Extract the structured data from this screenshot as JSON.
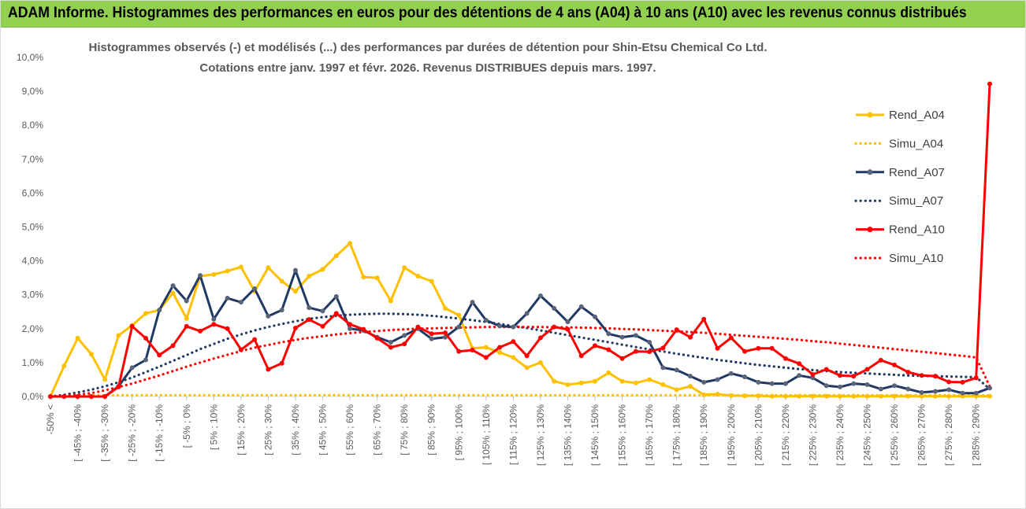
{
  "header": {
    "title": "ADAM Informe. Histogrammes des performances en euros pour des détentions de 4 ans (A04) à 10 ans (A10) avec les revenus connus distribués"
  },
  "chart_data": {
    "type": "line",
    "title_lines": [
      "Histogrammes observés (-) et modélisés (...) des performances par durées de détention pour Shin-Etsu Chemical Co Ltd.",
      "Cotations entre janv. 1997 et févr. 2026. Revenus DISTRIBUES depuis mars. 1997."
    ],
    "y_ticks": [
      "0,0%",
      "1,0%",
      "2,0%",
      "3,0%",
      "4,0%",
      "5,0%",
      "6,0%",
      "7,0%",
      "8,0%",
      "9,0%",
      "10,0%"
    ],
    "ylim": [
      0,
      10
    ],
    "x_labels": [
      "-50% <",
      "[ -45% ; -40%",
      "[ -35% ; -30%",
      "[ -25% ; -20%",
      "[ -15% ; -10%",
      "[ -5% ; 0%",
      "[ 5% ; 10%",
      "[ 15% ; 20%",
      "[ 25% ; 30%",
      "[ 35% ; 40%",
      "[ 45% ; 50%",
      "[ 55% ; 60%",
      "[ 65% ; 70%",
      "[ 75% ; 80%",
      "[ 85% ; 90%",
      "[ 95% ; 100%",
      "[ 105% ; 110%",
      "[ 115% ; 120%",
      "[ 125% ; 130%",
      "[ 135% ; 140%",
      "[ 145% ; 150%",
      "[ 155% ; 160%",
      "[ 165% ; 170%",
      "[ 175% ; 180%",
      "[ 185% ; 190%",
      "[ 195% ; 200%",
      "[ 205% ; 210%",
      "[ 215% ; 220%",
      "[ 225% ; 230%",
      "[ 235% ; 240%",
      "[ 245% ; 250%",
      "[ 255% ; 260%",
      "[ 265% ; 270%",
      "[ 275% ; 280%",
      "[ 285% ; 290%"
    ],
    "category_count": 70,
    "legend_position": "right",
    "grid": false,
    "series": [
      {
        "name": "Rend_A04",
        "style": "solid",
        "color": "#ffc000",
        "values": [
          0.0,
          0.9,
          1.72,
          1.25,
          0.5,
          1.8,
          2.1,
          2.45,
          2.55,
          3.05,
          2.3,
          3.55,
          3.6,
          3.7,
          3.82,
          3.1,
          3.8,
          3.4,
          3.1,
          3.55,
          3.75,
          4.15,
          4.52,
          3.52,
          3.5,
          2.82,
          3.8,
          3.55,
          3.4,
          2.6,
          2.4,
          1.42,
          1.45,
          1.3,
          1.15,
          0.85,
          1.0,
          0.45,
          0.35,
          0.4,
          0.45,
          0.7,
          0.45,
          0.4,
          0.5,
          0.35,
          0.2,
          0.3,
          0.05,
          0.07,
          0.03,
          0.02,
          0.02,
          0.01,
          0.01,
          0.01,
          0.01,
          0.01,
          0.01,
          0.01,
          0.01,
          0.01,
          0.01,
          0.01,
          0.01,
          0.01,
          0.01,
          0.01,
          0.01,
          0.01
        ]
      },
      {
        "name": "Simu_A04",
        "style": "dotted",
        "color": "#ffc000",
        "values": [
          0.0,
          0.02,
          0.03,
          0.04,
          0.04,
          0.04,
          0.04,
          0.04,
          0.04,
          0.04,
          0.04,
          0.04,
          0.04,
          0.04,
          0.04,
          0.04,
          0.04,
          0.04,
          0.04,
          0.04,
          0.04,
          0.04,
          0.04,
          0.04,
          0.04,
          0.04,
          0.04,
          0.04,
          0.04,
          0.04,
          0.04,
          0.04,
          0.04,
          0.04,
          0.04,
          0.04,
          0.04,
          0.04,
          0.04,
          0.04,
          0.04,
          0.04,
          0.04,
          0.04,
          0.04,
          0.04,
          0.04,
          0.04,
          0.04,
          0.04,
          0.04,
          0.04,
          0.04,
          0.04,
          0.04,
          0.04,
          0.04,
          0.04,
          0.04,
          0.04,
          0.04,
          0.04,
          0.04,
          0.04,
          0.04,
          0.04,
          0.04,
          0.04,
          0.04,
          0.03
        ]
      },
      {
        "name": "Rend_A07",
        "style": "solid",
        "color": "#1f3864",
        "values": [
          0.0,
          0.0,
          0.0,
          0.0,
          0.0,
          0.3,
          0.85,
          1.08,
          2.55,
          3.27,
          2.82,
          3.57,
          2.28,
          2.9,
          2.78,
          3.18,
          2.37,
          2.55,
          3.72,
          2.62,
          2.52,
          2.95,
          2.0,
          1.95,
          1.75,
          1.6,
          1.8,
          2.0,
          1.7,
          1.75,
          2.05,
          2.78,
          2.25,
          2.08,
          2.05,
          2.45,
          2.97,
          2.6,
          2.2,
          2.65,
          2.35,
          1.85,
          1.75,
          1.8,
          1.6,
          0.85,
          0.78,
          0.6,
          0.42,
          0.5,
          0.68,
          0.58,
          0.42,
          0.38,
          0.38,
          0.62,
          0.55,
          0.32,
          0.28,
          0.38,
          0.35,
          0.22,
          0.32,
          0.22,
          0.12,
          0.15,
          0.2,
          0.1,
          0.1,
          0.25
        ]
      },
      {
        "name": "Simu_A07",
        "style": "dotted",
        "color": "#1f3864",
        "values": [
          0.0,
          0.05,
          0.12,
          0.2,
          0.3,
          0.42,
          0.56,
          0.72,
          0.88,
          1.05,
          1.22,
          1.4,
          1.55,
          1.7,
          1.83,
          1.95,
          2.05,
          2.14,
          2.22,
          2.29,
          2.34,
          2.38,
          2.41,
          2.43,
          2.44,
          2.44,
          2.43,
          2.41,
          2.38,
          2.34,
          2.3,
          2.25,
          2.2,
          2.14,
          2.08,
          2.02,
          1.95,
          1.88,
          1.81,
          1.74,
          1.67,
          1.6,
          1.53,
          1.46,
          1.39,
          1.33,
          1.26,
          1.2,
          1.14,
          1.08,
          1.03,
          0.98,
          0.93,
          0.89,
          0.85,
          0.81,
          0.78,
          0.75,
          0.72,
          0.7,
          0.68,
          0.66,
          0.64,
          0.62,
          0.61,
          0.6,
          0.59,
          0.58,
          0.57,
          0.22
        ]
      },
      {
        "name": "Rend_A10",
        "style": "solid",
        "color": "#ff0000",
        "values": [
          0.0,
          0.0,
          0.0,
          0.0,
          0.0,
          0.28,
          2.07,
          1.72,
          1.22,
          1.5,
          2.07,
          1.93,
          2.13,
          2.0,
          1.38,
          1.68,
          0.8,
          0.98,
          2.02,
          2.27,
          2.07,
          2.45,
          2.13,
          1.98,
          1.72,
          1.45,
          1.55,
          2.05,
          1.85,
          1.88,
          1.33,
          1.37,
          1.15,
          1.45,
          1.62,
          1.2,
          1.73,
          2.05,
          1.98,
          1.2,
          1.5,
          1.38,
          1.12,
          1.33,
          1.32,
          1.43,
          1.97,
          1.75,
          2.28,
          1.42,
          1.73,
          1.33,
          1.42,
          1.42,
          1.12,
          0.97,
          0.65,
          0.8,
          0.62,
          0.6,
          0.8,
          1.07,
          0.93,
          0.72,
          0.62,
          0.6,
          0.43,
          0.42,
          0.55,
          9.22
        ]
      },
      {
        "name": "Simu_A10",
        "style": "dotted",
        "color": "#ff0000",
        "values": [
          0.0,
          0.02,
          0.05,
          0.1,
          0.18,
          0.28,
          0.38,
          0.5,
          0.62,
          0.75,
          0.88,
          1.0,
          1.12,
          1.23,
          1.34,
          1.44,
          1.52,
          1.6,
          1.67,
          1.73,
          1.78,
          1.83,
          1.87,
          1.9,
          1.93,
          1.96,
          1.98,
          2.0,
          2.01,
          2.02,
          2.03,
          2.04,
          2.05,
          2.05,
          2.05,
          2.05,
          2.05,
          2.04,
          2.04,
          2.03,
          2.02,
          2.01,
          1.99,
          1.98,
          1.96,
          1.94,
          1.92,
          1.9,
          1.88,
          1.85,
          1.82,
          1.79,
          1.76,
          1.73,
          1.7,
          1.67,
          1.63,
          1.6,
          1.56,
          1.52,
          1.48,
          1.44,
          1.4,
          1.36,
          1.32,
          1.28,
          1.24,
          1.2,
          1.15,
          0.3
        ]
      }
    ]
  }
}
